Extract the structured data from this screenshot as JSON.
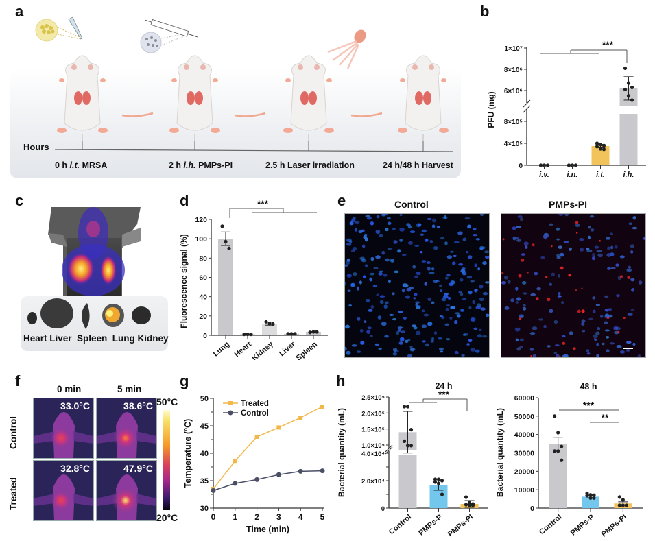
{
  "panel_letters": {
    "a": "a",
    "b": "b",
    "c": "c",
    "d": "d",
    "e": "e",
    "f": "f",
    "g": "g",
    "h": "h"
  },
  "panel_a": {
    "timeline_label": "Hours",
    "steps": [
      {
        "label_pre": "0 h ",
        "label_italic": "i.t.",
        "label_post": " MRSA",
        "icon": "bacteria-dish-pipette-icon"
      },
      {
        "label_pre": "2 h ",
        "label_italic": "i.h.",
        "label_post": " PMPs-PI",
        "icon": "syringe-particles-icon"
      },
      {
        "label_pre": "2.5 h ",
        "label_italic": "",
        "label_post": "Laser irradiation",
        "icon": "laser-icon"
      },
      {
        "label_pre": "24 h/48 h ",
        "label_italic": "",
        "label_post": "Harvest",
        "icon": ""
      }
    ]
  },
  "panel_c": {
    "organ_labels": "Heart Liver  Spleen  Lung Kidney"
  },
  "panel_e": {
    "titles": [
      "Control",
      "PMPs-PI"
    ]
  },
  "panel_f": {
    "columns": [
      "0 min",
      "5 min"
    ],
    "rows": [
      "Control",
      "Treated"
    ],
    "temps": [
      [
        "33.0°C",
        "38.6°C"
      ],
      [
        "32.8°C",
        "47.9°C"
      ]
    ],
    "scale_max": "50°C",
    "scale_min": "20°C"
  },
  "colors": {
    "gray_bar": "#c9c9cd",
    "yellow_bar": "#f1c35a",
    "blue_bar": "#74c7ec",
    "treated_line": "#f2b84a",
    "control_line": "#4b4f66",
    "axis": "#333333"
  },
  "chart_data": [
    {
      "id": "b",
      "type": "bar",
      "title": "",
      "xlabel": "",
      "ylabel": "PFU (mg)",
      "categories": [
        "i.v.",
        "i.n.",
        "i.t.",
        "i.h."
      ],
      "values": [
        0,
        0,
        350000,
        6200000
      ],
      "error": [
        0,
        0,
        30000,
        1100000
      ],
      "points": [
        [
          0,
          0,
          0,
          0,
          0,
          0
        ],
        [
          0,
          0,
          0,
          0,
          0,
          0
        ],
        [
          400000,
          380000,
          360000,
          340000,
          300000,
          290000
        ],
        [
          8100000,
          6700000,
          6300000,
          6100000,
          5500000,
          5100000
        ]
      ],
      "axis_break": true,
      "lower_ylim": [
        0,
        1000000
      ],
      "upper_ylim": [
        5000000,
        10000000
      ],
      "yticks": [
        "0",
        "4×10⁵",
        "8×10⁵",
        "6×10⁶",
        "8×10⁶",
        "1×10⁷"
      ],
      "significance": [
        {
          "label": "***",
          "groups": [
            "i.v.,i.n.,i.t.",
            "i.h."
          ]
        }
      ]
    },
    {
      "id": "d",
      "type": "bar",
      "title": "",
      "xlabel": "",
      "ylabel": "Fluorescence signal (%)",
      "categories": [
        "Lung",
        "Heart",
        "Kidney",
        "Liver",
        "Spleen"
      ],
      "values": [
        100,
        1,
        12,
        1.5,
        3.5
      ],
      "error": [
        7,
        0.3,
        1.5,
        0.3,
        0.4
      ],
      "points": [
        [
          113,
          97,
          90
        ],
        [
          1,
          1,
          1
        ],
        [
          14,
          12,
          11.5
        ],
        [
          1.5,
          1.5,
          1.5
        ],
        [
          3,
          3.5,
          3.5
        ]
      ],
      "ylim": [
        0,
        120
      ],
      "yticks": [
        "0",
        "20",
        "40",
        "60",
        "80",
        "100",
        "120"
      ],
      "significance": [
        {
          "label": "***",
          "groups": [
            "Lung",
            "Heart,Kidney,Liver,Spleen"
          ]
        }
      ]
    },
    {
      "id": "g",
      "type": "line",
      "title": "",
      "xlabel": "Time (min)",
      "ylabel": "Temperature (°C)",
      "x": [
        0,
        1,
        2,
        3,
        4,
        5
      ],
      "xlim": [
        0,
        5
      ],
      "ylim": [
        30,
        50
      ],
      "xticks": [
        "0",
        "1",
        "2",
        "3",
        "4",
        "5"
      ],
      "yticks": [
        "30",
        "35",
        "40",
        "45",
        "50"
      ],
      "legend_position": "top-left",
      "series": [
        {
          "name": "Treated",
          "values": [
            33.5,
            38.6,
            43.0,
            44.7,
            46.5,
            48.5
          ],
          "marker": "square"
        },
        {
          "name": "Control",
          "values": [
            33.2,
            34.5,
            35.2,
            36.1,
            36.7,
            36.8
          ],
          "marker": "circle"
        }
      ]
    },
    {
      "id": "h-24h",
      "type": "bar",
      "title": "24 h",
      "xlabel": "",
      "ylabel": "Bacterial quantity (mL)",
      "categories": [
        "Control",
        "PMPs-P",
        "PMPs-PI"
      ],
      "values": [
        140000,
        17000,
        3000
      ],
      "error": [
        65000,
        4000,
        2500
      ],
      "points": [
        [
          220000,
          220000,
          148000,
          112000,
          98000,
          98000
        ],
        [
          21000,
          21000,
          20000,
          19000,
          18000,
          10000
        ],
        [
          8000,
          4000,
          3000,
          2500,
          2000,
          2000
        ]
      ],
      "axis_break": true,
      "lower_ylim": [
        0,
        40000
      ],
      "upper_ylim": [
        100000,
        250000
      ],
      "yticks": [
        "0",
        "2.0×10⁴",
        "4.0×10⁴",
        "1.0×10⁵",
        "1.5×10⁵",
        "2.0×10⁵",
        "2.5×10⁵"
      ],
      "significance": [
        {
          "label": "***",
          "groups": [
            "Control,PMPs-P",
            "PMPs-PI"
          ]
        }
      ]
    },
    {
      "id": "h-48h",
      "type": "bar",
      "title": "48 h",
      "xlabel": "",
      "ylabel": "Bacterial quantity (mL)",
      "categories": [
        "Control",
        "PMPs-P",
        "PMPs-PI"
      ],
      "values": [
        35000,
        6200,
        2500
      ],
      "error": [
        3500,
        700,
        900
      ],
      "points": [
        [
          50000,
          41000,
          33500,
          31000,
          31000,
          26000
        ],
        [
          8000,
          7200,
          7000,
          6800,
          5500,
          5500
        ],
        [
          6000,
          4500,
          1500,
          1500,
          1500,
          1500
        ]
      ],
      "ylim": [
        0,
        60000
      ],
      "yticks": [
        "0",
        "10000",
        "20000",
        "30000",
        "40000",
        "50000",
        "60000"
      ],
      "significance": [
        {
          "label": "***",
          "groups": [
            "Control",
            "PMPs-PI"
          ]
        },
        {
          "label": "**",
          "groups": [
            "PMPs-P",
            "PMPs-PI"
          ]
        }
      ]
    }
  ]
}
